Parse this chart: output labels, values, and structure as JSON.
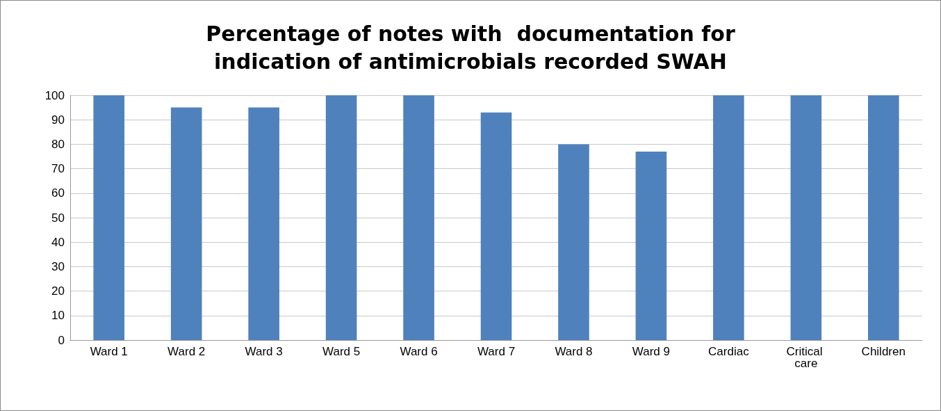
{
  "chart_data": {
    "type": "bar",
    "title": "Percentage of notes with  documentation for\nindication of antimicrobials recorded SWAH",
    "categories": [
      "Ward 1",
      "Ward 2",
      "Ward 3",
      "Ward 5",
      "Ward 6",
      "Ward 7",
      "Ward 8",
      "Ward 9",
      "Cardiac",
      "Critical care",
      "Children"
    ],
    "values": [
      100,
      95,
      95,
      100,
      100,
      93,
      80,
      77,
      100,
      100,
      100
    ],
    "color": "#4f81bd",
    "ylim": [
      0,
      100
    ],
    "yticks": [
      0,
      10,
      20,
      30,
      40,
      50,
      60,
      70,
      80,
      90,
      100
    ],
    "grid": true
  }
}
